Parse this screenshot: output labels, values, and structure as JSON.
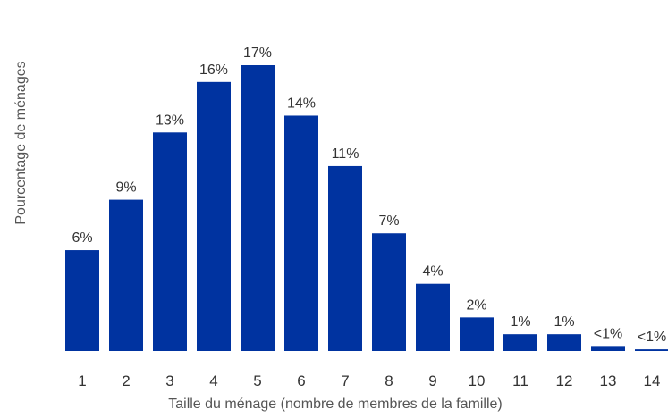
{
  "chart_data": {
    "type": "bar",
    "title": "",
    "xlabel": "Taille du ménage (nombre de membres de la famille)",
    "ylabel": "Pourcentage de ménages",
    "categories": [
      "1",
      "2",
      "3",
      "4",
      "5",
      "6",
      "7",
      "8",
      "9",
      "10",
      "11",
      "12",
      "13",
      "14"
    ],
    "values": [
      6,
      9,
      13,
      16,
      17,
      14,
      11,
      7,
      4,
      2,
      1,
      1,
      0.3,
      0.1
    ],
    "data_labels": [
      "6%",
      "9%",
      "13%",
      "16%",
      "17%",
      "14%",
      "11%",
      "7%",
      "4%",
      "2%",
      "1%",
      "1%",
      "<1%",
      "<1%"
    ],
    "ylim": [
      0,
      17
    ],
    "grid": false,
    "legend": "none",
    "bar_color": "#0033a0"
  }
}
